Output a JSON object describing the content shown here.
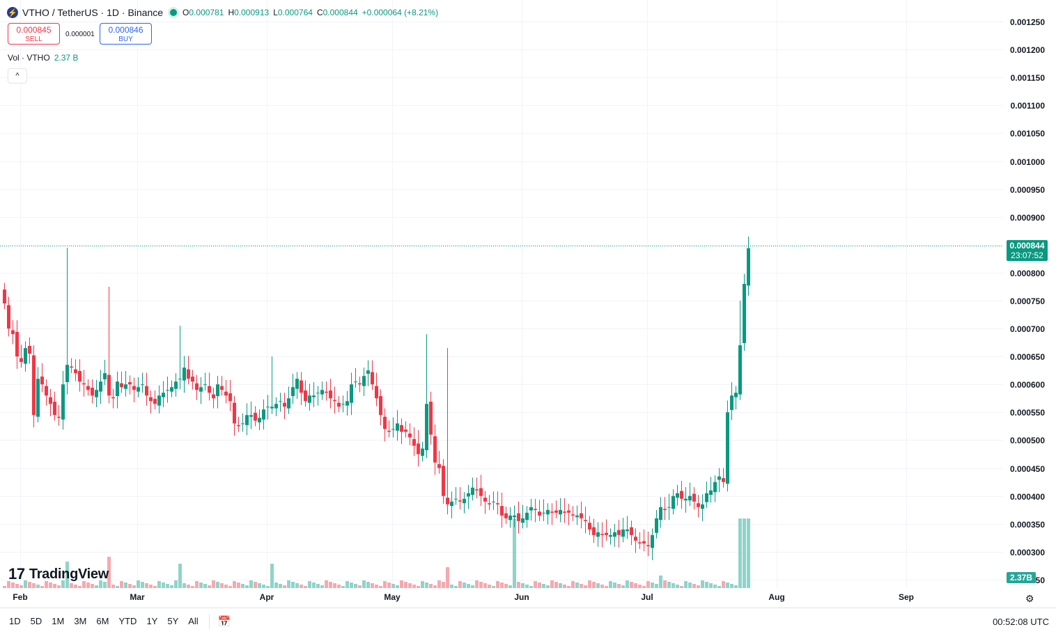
{
  "header": {
    "symbol_title": "VTHO / TetherUS · 1D · Binance",
    "logo_glyph": "⚡",
    "open_label": "O",
    "open_value": "0.000781",
    "high_label": "H",
    "high_value": "0.000913",
    "low_label": "L",
    "low_value": "0.000764",
    "close_label": "C",
    "close_value": "0.000844",
    "change": "+0.000064 (+8.21%)"
  },
  "trade": {
    "sell_price": "0.000845",
    "sell_label": "SELL",
    "spread": "0.000001",
    "buy_price": "0.000846",
    "buy_label": "BUY"
  },
  "volume": {
    "label": "Vol · VTHO",
    "value": "2.37 B",
    "tag": "2.37B"
  },
  "collapse_glyph": "^",
  "brand": {
    "mark": "17",
    "name": "TradingView"
  },
  "price_tag": {
    "price": "0.000844",
    "countdown": "23:07:52"
  },
  "bottom_bar": {
    "timeframes": [
      "1D",
      "5D",
      "1M",
      "3M",
      "6M",
      "YTD",
      "1Y",
      "5Y",
      "All"
    ],
    "clock": "00:52:08 UTC",
    "calendar_icon": "calendar-range-icon"
  },
  "colors": {
    "up": "#089981",
    "down": "#f23645",
    "vol_up": "#8fd4c8",
    "vol_down": "#f5a9af",
    "grid": "#f0f3fa"
  },
  "chart_data": {
    "type": "candlestick",
    "title": "VTHO / TetherUS · 1D · Binance",
    "y_ticks": [
      "0.001250",
      "0.001200",
      "0.001150",
      "0.001100",
      "0.001050",
      "0.001000",
      "0.000950",
      "0.000900",
      "0.000850",
      "0.000800",
      "0.000750",
      "0.000700",
      "0.000650",
      "0.000600",
      "0.000550",
      "0.000500",
      "0.000450",
      "0.000400",
      "0.000350",
      "0.000300",
      "0.000250"
    ],
    "x_ticks": [
      "Feb",
      "Mar",
      "Apr",
      "May",
      "Jun",
      "Jul",
      "Aug",
      "Sep"
    ],
    "ylim": [
      0.000235,
      0.00127
    ],
    "last_price": 0.000844,
    "closes": [
      0.000745,
      0.0007,
      0.00069,
      0.00065,
      0.00064,
      0.000665,
      0.000655,
      0.000545,
      0.00061,
      0.0006,
      0.00058,
      0.000565,
      0.000545,
      0.00054,
      0.0006,
      0.000635,
      0.00063,
      0.00062,
      0.000605,
      0.0006,
      0.00059,
      0.00058,
      0.00059,
      0.000605,
      0.00062,
      0.00058,
      0.000575,
      0.000605,
      0.000595,
      0.0006,
      0.0006,
      0.00059,
      0.000595,
      0.0006,
      0.00058,
      0.00057,
      0.000565,
      0.00058,
      0.000585,
      0.00059,
      0.000595,
      0.000605,
      0.00061,
      0.00063,
      0.00061,
      0.000605,
      0.00059,
      0.000595,
      0.0006,
      0.000585,
      0.000575,
      0.0006,
      0.00059,
      0.00058,
      0.00057,
      0.00053,
      0.000525,
      0.00053,
      0.000545,
      0.000545,
      0.000535,
      0.00054,
      0.000555,
      0.00056,
      0.00056,
      0.000565,
      0.00057,
      0.00056,
      0.000575,
      0.000595,
      0.00061,
      0.000585,
      0.00057,
      0.00058,
      0.00058,
      0.000585,
      0.00059,
      0.000585,
      0.000575,
      0.00057,
      0.00056,
      0.000565,
      0.00057,
      0.0006,
      0.000605,
      0.0006,
      0.000615,
      0.000625,
      0.0006,
      0.000575,
      0.000545,
      0.00052,
      0.000515,
      0.00052,
      0.00053,
      0.000515,
      0.000515,
      0.000505,
      0.00049,
      0.000475,
      0.000485,
      0.000565,
      0.00051,
      0.00046,
      0.00045,
      0.0004,
      0.000385,
      0.00039,
      0.000395,
      0.00039,
      0.000395,
      0.000405,
      0.000415,
      0.00041,
      0.0004,
      0.00039,
      0.000385,
      0.00039,
      0.000385,
      0.000365,
      0.00036,
      0.000365,
      0.000365,
      0.000355,
      0.00036,
      0.00037,
      0.00038,
      0.000375,
      0.000365,
      0.00037,
      0.000375,
      0.00037,
      0.00037,
      0.000375,
      0.00037,
      0.00037,
      0.000365,
      0.000365,
      0.00036,
      0.000355,
      0.00034,
      0.00033,
      0.000335,
      0.00033,
      0.00033,
      0.00033,
      0.000335,
      0.00033,
      0.00034,
      0.00034,
      0.00033,
      0.00032,
      0.000315,
      0.000315,
      0.00031,
      0.00033,
      0.00036,
      0.00038,
      0.000375,
      0.00038,
      0.0004,
      0.000405,
      0.000395,
      0.000395,
      0.0004,
      0.00039,
      0.00038,
      0.000385,
      0.000405,
      0.00041,
      0.000425,
      0.000435,
      0.000425,
      0.00055,
      0.00058,
      0.000585,
      0.00067,
      0.00078,
      0.000844
    ]
  }
}
